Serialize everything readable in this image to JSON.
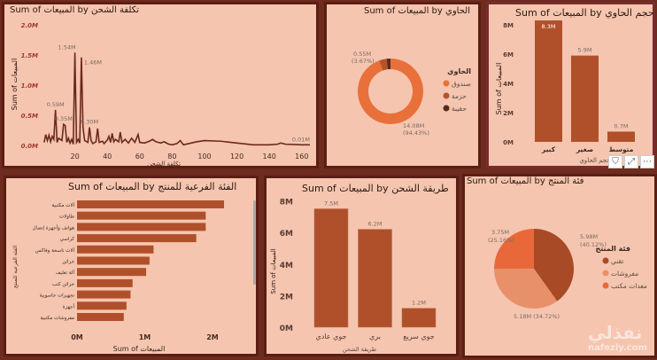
{
  "colors": {
    "background": "#6e2c1e",
    "panel": "#f5c5af",
    "bar": "#b0502a",
    "line": "#6b2a1c"
  },
  "line_chart": {
    "title": "Sum of المبيعات by تكلفة الشحن",
    "xlabel": "تكلفة الشحن",
    "ylabel": "Sum of المبيعات",
    "chart_data": {
      "type": "line",
      "xlim": [
        0,
        165
      ],
      "ylim": [
        0,
        2.0
      ],
      "yticks": [
        "0.0M",
        "0.5M",
        "1.0M",
        "1.5M",
        "2.0M"
      ],
      "xticks": [
        "20",
        "40",
        "60",
        "80",
        "100",
        "120",
        "140",
        "160"
      ],
      "points": [
        [
          1,
          0.05
        ],
        [
          2,
          0.18
        ],
        [
          3,
          0.08
        ],
        [
          4,
          0.17
        ],
        [
          5,
          0.06
        ],
        [
          6,
          0.15
        ],
        [
          7,
          0.1
        ],
        [
          8,
          0.59
        ],
        [
          9,
          0.05
        ],
        [
          10,
          0.12
        ],
        [
          12,
          0.08
        ],
        [
          13,
          0.35
        ],
        [
          14,
          0.33
        ],
        [
          15,
          0.05
        ],
        [
          16,
          0.12
        ],
        [
          17,
          0.04
        ],
        [
          18,
          0.1
        ],
        [
          19,
          0.02
        ],
        [
          20,
          1.54
        ],
        [
          21,
          0.05
        ],
        [
          22,
          0.1
        ],
        [
          23,
          0.04
        ],
        [
          24,
          1.46
        ],
        [
          25,
          0.3
        ],
        [
          26,
          0.08
        ],
        [
          28,
          0.05
        ],
        [
          29,
          0.3
        ],
        [
          30,
          0.08
        ],
        [
          31,
          0.03
        ],
        [
          33,
          0.06
        ],
        [
          34,
          0.28
        ],
        [
          35,
          0.05
        ],
        [
          37,
          0.07
        ],
        [
          38,
          0.03
        ],
        [
          40,
          0.09
        ],
        [
          41,
          0.15
        ],
        [
          42,
          0.05
        ],
        [
          43,
          0.2
        ],
        [
          44,
          0.06
        ],
        [
          45,
          0.1
        ],
        [
          47,
          0.06
        ],
        [
          48,
          0.22
        ],
        [
          49,
          0.05
        ],
        [
          51,
          0.1
        ],
        [
          53,
          0.04
        ],
        [
          55,
          0.12
        ],
        [
          57,
          0.05
        ],
        [
          59,
          0.18
        ],
        [
          60,
          0.05
        ],
        [
          63,
          0.04
        ],
        [
          66,
          0.07
        ],
        [
          68,
          0.1
        ],
        [
          70,
          0.06
        ],
        [
          73,
          0.04
        ],
        [
          75,
          0.06
        ],
        [
          78,
          0.02
        ],
        [
          80,
          0.01
        ],
        [
          83,
          0.03
        ],
        [
          85,
          0.08
        ],
        [
          87,
          0.01
        ],
        [
          95,
          0.06
        ],
        [
          100,
          0.08
        ],
        [
          110,
          0.07
        ],
        [
          120,
          0.04
        ],
        [
          130,
          0.01
        ],
        [
          140,
          0.01
        ],
        [
          145,
          0.02
        ],
        [
          147,
          0.04
        ],
        [
          150,
          0.02
        ],
        [
          160,
          0.01
        ],
        [
          165,
          0.01
        ]
      ],
      "labels": [
        {
          "x": 20,
          "y": 1.54,
          "text": "1.54M"
        },
        {
          "x": 24,
          "y": 1.46,
          "text": "1.46M"
        },
        {
          "x": 8,
          "y": 0.59,
          "text": "0.59M"
        },
        {
          "x": 13,
          "y": 0.35,
          "text": "0.35M"
        },
        {
          "x": 29,
          "y": 0.3,
          "text": "0.30M"
        },
        {
          "x": 165,
          "y": 0.01,
          "text": "0.01M"
        }
      ]
    }
  },
  "donut_chart": {
    "title": "Sum of المبيعات by الحاوي",
    "legend_title": "الحاوي",
    "chart_data": {
      "type": "pie",
      "slices": [
        {
          "name": "صندوق",
          "value": 14.08,
          "label": "14.08M",
          "pct": "(94.43%)",
          "color": "#e8703a"
        },
        {
          "name": "حزمة",
          "value": 0.55,
          "label": "0.55M",
          "pct": "(3.67%)",
          "color": "#b5532a"
        },
        {
          "name": "حقيبة",
          "value": 0.28,
          "color": "#5a2a1a"
        }
      ]
    }
  },
  "container_size_chart": {
    "title": "Sum of المبيعات by حجم الحاوي",
    "xlabel": "حجم الحاوي",
    "ylabel": "Sum of المبيعات",
    "chart_data": {
      "type": "bar",
      "categories": [
        "كبير",
        "صغير",
        "متوسط"
      ],
      "values": [
        8.3,
        5.9,
        0.7
      ],
      "labels": [
        "8.3M",
        "5.9M",
        "0.7M"
      ],
      "ylim": [
        0,
        8.2
      ],
      "yticks": [
        0,
        2,
        4,
        6,
        8
      ],
      "yticklabels": [
        "0M",
        "2M",
        "4M",
        "6M",
        "8M"
      ]
    }
  },
  "toolbar": {
    "filter": "⛉",
    "focus": "⤢",
    "more": "⋯"
  },
  "subcategory_chart": {
    "title": "Sum of المبيعات by الفئة الفرعية للمنتج",
    "xlabel": "Sum of المبيعات",
    "ylabel": "الفئة الفرعية للمنتج",
    "chart_data": {
      "type": "bar",
      "orientation": "horizontal",
      "categories": [
        "آلات مكتبية",
        "طاولات",
        "هواتف وأجهزة إتصال",
        "كراسي",
        "آلات ناسخة وفاكس",
        "خزائن",
        "آلة تغليف",
        "خزائن كتب",
        "تجهيزات حاسوبية",
        "أجهزة",
        "مفروشات مكتبية"
      ],
      "values": [
        2.17,
        1.9,
        1.9,
        1.76,
        1.13,
        1.07,
        1.02,
        0.82,
        0.79,
        0.73,
        0.69
      ],
      "xticks": [
        0,
        1,
        2
      ],
      "xticklabels": [
        "0M",
        "1M",
        "2M"
      ]
    }
  },
  "shipping_chart": {
    "title": "Sum of المبيعات by طريقة الشحن",
    "xlabel": "طريقة الشحن",
    "ylabel": "Sum of المبيعات",
    "chart_data": {
      "type": "bar",
      "categories": [
        "جوي عادي",
        "بري",
        "جوي سريع"
      ],
      "values": [
        7.5,
        6.2,
        1.2
      ],
      "labels": [
        "7.5M",
        "6.2M",
        "1.2M"
      ],
      "yticks": [
        0,
        2,
        4,
        6,
        8
      ],
      "yticklabels": [
        "0M",
        "2M",
        "4M",
        "6M",
        "8M"
      ]
    }
  },
  "pie_chart": {
    "title": "Sum of المبيعات by فئة المنتج",
    "legend_title": "فئة المنتج",
    "chart_data": {
      "type": "pie",
      "slices": [
        {
          "name": "تقني",
          "value": 5.98,
          "label": "5.98M",
          "pct": "(40.12%)",
          "color": "#a84a25"
        },
        {
          "name": "مفروشات",
          "value": 5.18,
          "label": "5.18M (34.72%)",
          "pct": "",
          "color": "#e8906a"
        },
        {
          "name": "معدات مكتب",
          "value": 3.75,
          "label": "3.75M",
          "pct": "(25.16%)",
          "color": "#e8683a"
        }
      ]
    }
  },
  "watermark": {
    "logo": "نفذلي",
    "url": "nafezly.com"
  }
}
